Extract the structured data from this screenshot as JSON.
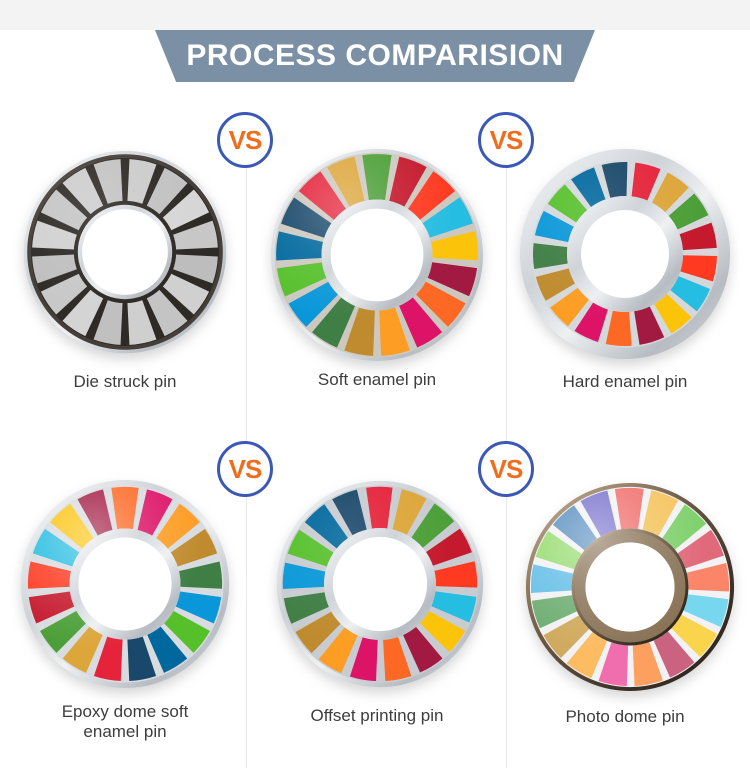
{
  "header": {
    "title": "PROCESS COMPARISION",
    "background_color": "#7b90a5",
    "text_color": "#ffffff",
    "top_strip_color": "#f3f3f4"
  },
  "vs_badge": {
    "label": "VS",
    "text_color": "#ee6e1e",
    "border_color": "#3c58b6",
    "background_color": "#ffffff"
  },
  "divider_color": "#e8e8e8",
  "palettes": {
    "sdg": [
      "#e5243b",
      "#dda63a",
      "#4c9f38",
      "#c5192d",
      "#ff3a21",
      "#26bde2",
      "#fcc30b",
      "#a21942",
      "#fd6925",
      "#dd1367",
      "#fd9d24",
      "#bf8b2e",
      "#3f7e44",
      "#0a97d9",
      "#56c02b",
      "#00689d",
      "#19486a"
    ],
    "sdg_pastel": [
      "#f0716f",
      "#f5c45e",
      "#7fd06c",
      "#e0697a",
      "#fb8568",
      "#76d7ef",
      "#fbd44d",
      "#ca6380",
      "#fda05f",
      "#f06eae",
      "#fdbb62",
      "#d0aa5e",
      "#6fae72",
      "#66bfe8",
      "#98dc72",
      "#5a8fc0",
      "#7b74ce"
    ],
    "die_struck_grays": [
      "#cccccc",
      "#c2c2c2",
      "#d6d6d6",
      "#c7c7c7",
      "#bdbdbd",
      "#d0d0d0",
      "#c4c4c4",
      "#cfcfcf",
      "#c0c0c0",
      "#d4d4d4",
      "#c8c8c8",
      "#bfbfbf",
      "#d1d1d1",
      "#c5c5c5",
      "#cdcdcd",
      "#c3c3c3"
    ]
  },
  "pins": [
    {
      "id": "die-struck",
      "label": "Die struck pin",
      "kind": "metal",
      "segments": 16,
      "palette": "die_struck_grays",
      "rotation": 0,
      "finish": "matte"
    },
    {
      "id": "soft-enamel",
      "label": "Soft enamel pin",
      "kind": "enamel",
      "segments": 17,
      "palette": "sdg",
      "rotation": -53,
      "finish": "gloss"
    },
    {
      "id": "hard-enamel",
      "label": "Hard enamel pin",
      "kind": "enamel",
      "segments": 17,
      "palette": "sdg",
      "rotation": 4,
      "finish": "flat"
    },
    {
      "id": "epoxy-dome",
      "label": "Epoxy dome soft enamel pin",
      "kind": "enamel",
      "segments": 17,
      "palette": "sdg",
      "rotation": 180,
      "finish": "dome"
    },
    {
      "id": "offset-printing",
      "label": "Offset printing pin",
      "kind": "enamel",
      "segments": 17,
      "palette": "sdg",
      "rotation": -11,
      "finish": "flat"
    },
    {
      "id": "photo-dome",
      "label": "Photo dome pin",
      "kind": "photo",
      "segments": 17,
      "palette": "sdg_pastel",
      "rotation": -11,
      "finish": "dome"
    }
  ]
}
